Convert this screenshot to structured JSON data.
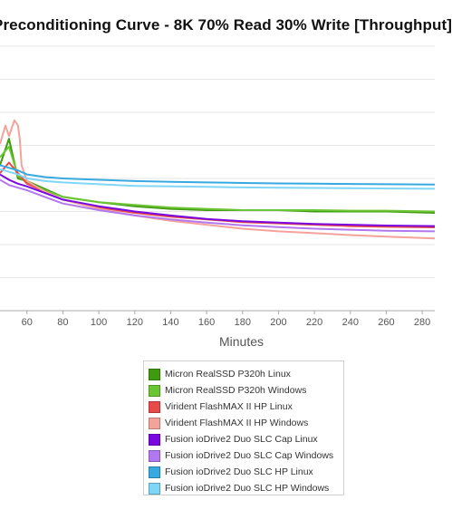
{
  "chart_data": {
    "type": "line",
    "title": "Preconditioning Curve - 8K 70% Read 30% Write [Throughput]",
    "xlabel": "Minutes",
    "ylabel": "",
    "xlim": [
      45,
      287
    ],
    "ylim": [
      0,
      1
    ],
    "x_ticks": [
      60,
      80,
      100,
      120,
      140,
      160,
      180,
      200,
      220,
      240,
      260,
      280
    ],
    "x_tick_labels": [
      "60",
      "80",
      "100",
      "120",
      "140",
      "160",
      "180",
      "200",
      "220",
      "240",
      "260",
      "280"
    ],
    "grid": true,
    "legend_position": "bottom",
    "series": [
      {
        "name": "Micron RealSSD P320h Linux",
        "color": "#3f9a0f",
        "points": [
          [
            45,
            0.55
          ],
          [
            50,
            0.65
          ],
          [
            55,
            0.5
          ],
          [
            60,
            0.49
          ],
          [
            70,
            0.46
          ],
          [
            80,
            0.43
          ],
          [
            100,
            0.41
          ],
          [
            120,
            0.395
          ],
          [
            140,
            0.385
          ],
          [
            160,
            0.38
          ],
          [
            180,
            0.38
          ],
          [
            200,
            0.38
          ],
          [
            220,
            0.375
          ],
          [
            240,
            0.375
          ],
          [
            260,
            0.375
          ],
          [
            287,
            0.37
          ]
        ]
      },
      {
        "name": "Micron RealSSD P320h Windows",
        "color": "#6cc535",
        "points": [
          [
            45,
            0.58
          ],
          [
            50,
            0.62
          ],
          [
            55,
            0.51
          ],
          [
            60,
            0.485
          ],
          [
            70,
            0.455
          ],
          [
            80,
            0.43
          ],
          [
            100,
            0.41
          ],
          [
            120,
            0.4
          ],
          [
            140,
            0.39
          ],
          [
            160,
            0.385
          ],
          [
            180,
            0.38
          ],
          [
            200,
            0.38
          ],
          [
            220,
            0.38
          ],
          [
            240,
            0.378
          ],
          [
            260,
            0.378
          ],
          [
            287,
            0.375
          ]
        ]
      },
      {
        "name": "Virident FlashMAX II HP Linux",
        "color": "#e84a4a",
        "points": [
          [
            45,
            0.52
          ],
          [
            50,
            0.56
          ],
          [
            55,
            0.52
          ],
          [
            60,
            0.48
          ],
          [
            70,
            0.45
          ],
          [
            80,
            0.42
          ],
          [
            100,
            0.39
          ],
          [
            120,
            0.37
          ],
          [
            140,
            0.355
          ],
          [
            160,
            0.345
          ],
          [
            180,
            0.335
          ],
          [
            200,
            0.33
          ],
          [
            220,
            0.325
          ],
          [
            240,
            0.32
          ],
          [
            260,
            0.317
          ],
          [
            287,
            0.315
          ]
        ]
      },
      {
        "name": "Virident FlashMAX II HP Windows",
        "color": "#f4a39b",
        "points": [
          [
            45,
            0.63
          ],
          [
            48,
            0.7
          ],
          [
            50,
            0.66
          ],
          [
            53,
            0.72
          ],
          [
            55,
            0.7
          ],
          [
            56,
            0.65
          ],
          [
            57,
            0.55
          ],
          [
            60,
            0.49
          ],
          [
            70,
            0.45
          ],
          [
            80,
            0.42
          ],
          [
            100,
            0.385
          ],
          [
            120,
            0.36
          ],
          [
            140,
            0.34
          ],
          [
            160,
            0.325
          ],
          [
            180,
            0.31
          ],
          [
            200,
            0.3
          ],
          [
            220,
            0.293
          ],
          [
            240,
            0.286
          ],
          [
            260,
            0.28
          ],
          [
            287,
            0.273
          ]
        ]
      },
      {
        "name": "Fusion ioDrive2 Duo SLC Cap Linux",
        "color": "#7a08e0",
        "points": [
          [
            45,
            0.515
          ],
          [
            50,
            0.495
          ],
          [
            55,
            0.48
          ],
          [
            60,
            0.47
          ],
          [
            70,
            0.445
          ],
          [
            80,
            0.42
          ],
          [
            100,
            0.395
          ],
          [
            120,
            0.375
          ],
          [
            140,
            0.36
          ],
          [
            160,
            0.347
          ],
          [
            180,
            0.338
          ],
          [
            200,
            0.333
          ],
          [
            220,
            0.328
          ],
          [
            240,
            0.325
          ],
          [
            260,
            0.322
          ],
          [
            287,
            0.32
          ]
        ]
      },
      {
        "name": "Fusion ioDrive2 Duo SLC Cap Windows",
        "color": "#b278f2",
        "points": [
          [
            45,
            0.495
          ],
          [
            50,
            0.475
          ],
          [
            55,
            0.465
          ],
          [
            60,
            0.455
          ],
          [
            70,
            0.43
          ],
          [
            80,
            0.405
          ],
          [
            100,
            0.38
          ],
          [
            120,
            0.36
          ],
          [
            140,
            0.345
          ],
          [
            160,
            0.333
          ],
          [
            180,
            0.323
          ],
          [
            200,
            0.316
          ],
          [
            220,
            0.31
          ],
          [
            240,
            0.306
          ],
          [
            260,
            0.302
          ],
          [
            287,
            0.3
          ]
        ]
      },
      {
        "name": "Fusion ioDrive2 Duo SLC HP Linux",
        "color": "#36a9e1",
        "points": [
          [
            45,
            0.55
          ],
          [
            50,
            0.54
          ],
          [
            55,
            0.53
          ],
          [
            60,
            0.515
          ],
          [
            70,
            0.505
          ],
          [
            80,
            0.5
          ],
          [
            100,
            0.495
          ],
          [
            120,
            0.49
          ],
          [
            140,
            0.487
          ],
          [
            160,
            0.485
          ],
          [
            180,
            0.483
          ],
          [
            200,
            0.481
          ],
          [
            220,
            0.48
          ],
          [
            240,
            0.479
          ],
          [
            260,
            0.478
          ],
          [
            287,
            0.477
          ]
        ]
      },
      {
        "name": "Fusion ioDrive2 Duo SLC HP Windows",
        "color": "#7fd6f6",
        "points": [
          [
            45,
            0.535
          ],
          [
            50,
            0.525
          ],
          [
            55,
            0.515
          ],
          [
            60,
            0.5
          ],
          [
            70,
            0.49
          ],
          [
            80,
            0.485
          ],
          [
            100,
            0.478
          ],
          [
            120,
            0.472
          ],
          [
            140,
            0.47
          ],
          [
            160,
            0.468
          ],
          [
            180,
            0.466
          ],
          [
            200,
            0.465
          ],
          [
            220,
            0.464
          ],
          [
            240,
            0.463
          ],
          [
            260,
            0.462
          ],
          [
            287,
            0.461
          ]
        ]
      }
    ]
  }
}
